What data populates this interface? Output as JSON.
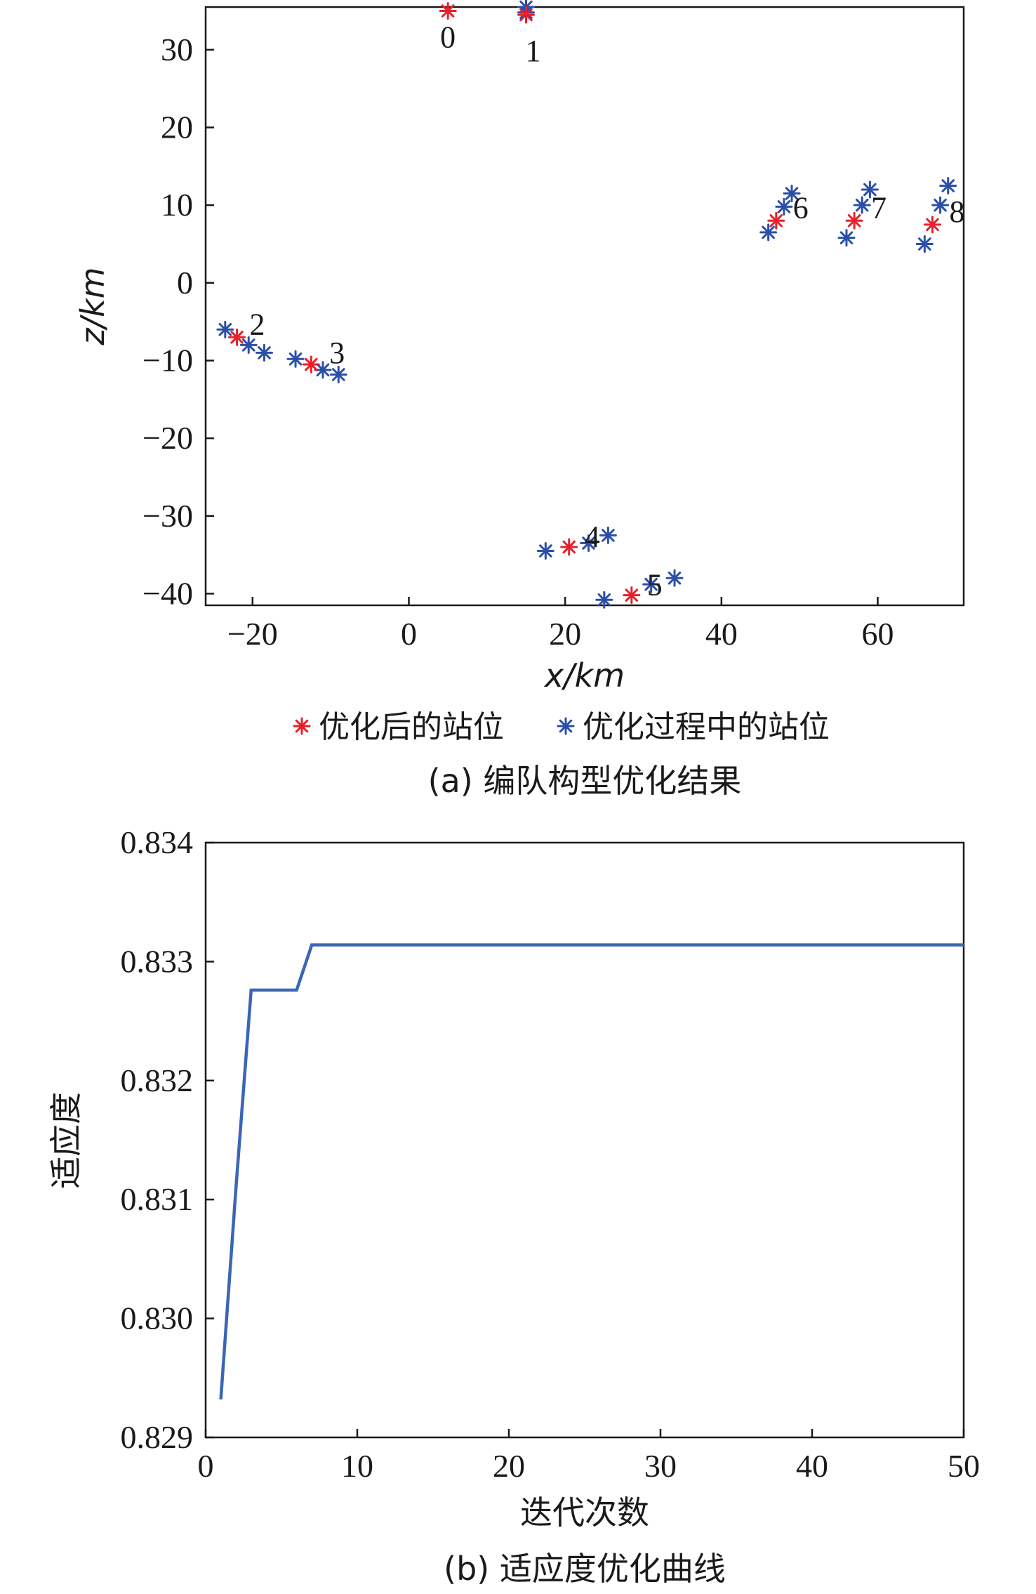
{
  "chart_data": [
    {
      "type": "scatter",
      "caption": "(a) 编队构型优化结果",
      "xlabel": "x/km",
      "ylabel": "z/km",
      "xlim": [
        -26,
        71
      ],
      "ylim": [
        -41.5,
        35.5
      ],
      "xticks": [
        -20,
        0,
        20,
        40,
        60
      ],
      "yticks": [
        -40,
        -30,
        -20,
        -10,
        0,
        10,
        20,
        30
      ],
      "xtick_labels": [
        "−20",
        "0",
        "20",
        "40",
        "60"
      ],
      "ytick_labels": [
        "−40",
        "−30",
        "−20",
        "−10",
        "0",
        "10",
        "20",
        "30"
      ],
      "legend_position": "bottom",
      "colors": {
        "optimized": "#e8202a",
        "process": "#2b4fa8"
      },
      "series": [
        {
          "name": "优化后的站位",
          "color": "#e8202a",
          "points": [
            {
              "x": 5,
              "y": 35
            },
            {
              "x": 15,
              "y": 34.5
            },
            {
              "x": -22,
              "y": -7
            },
            {
              "x": -12.5,
              "y": -10.5
            },
            {
              "x": 20.5,
              "y": -34
            },
            {
              "x": 28.5,
              "y": -40.2
            },
            {
              "x": 47,
              "y": 8
            },
            {
              "x": 57,
              "y": 8
            },
            {
              "x": 67,
              "y": 7.5
            }
          ]
        },
        {
          "name": "优化过程中的站位",
          "color": "#2b4fa8",
          "points": [
            {
              "x": 15,
              "y": 35.5
            },
            {
              "x": 15,
              "y": 34.8
            },
            {
              "x": -23.5,
              "y": -6
            },
            {
              "x": -20.5,
              "y": -8
            },
            {
              "x": -18.5,
              "y": -9
            },
            {
              "x": -14.5,
              "y": -9.8
            },
            {
              "x": -11,
              "y": -11.2
            },
            {
              "x": -9,
              "y": -11.8
            },
            {
              "x": 17.5,
              "y": -34.5
            },
            {
              "x": 23,
              "y": -33.5
            },
            {
              "x": 25.5,
              "y": -32.5
            },
            {
              "x": 25,
              "y": -40.8
            },
            {
              "x": 31,
              "y": -38.8
            },
            {
              "x": 34,
              "y": -38
            },
            {
              "x": 46,
              "y": 6.5
            },
            {
              "x": 48,
              "y": 9.8
            },
            {
              "x": 49,
              "y": 11.5
            },
            {
              "x": 56,
              "y": 5.8
            },
            {
              "x": 58,
              "y": 10
            },
            {
              "x": 59,
              "y": 12
            },
            {
              "x": 66,
              "y": 5
            },
            {
              "x": 68,
              "y": 10
            },
            {
              "x": 69,
              "y": 12.5
            }
          ]
        }
      ],
      "annotations": [
        {
          "text": "0",
          "x": 5,
          "y": 35
        },
        {
          "text": "1",
          "x": 15,
          "y": 34.5
        },
        {
          "text": "2",
          "x": -22,
          "y": -7
        },
        {
          "text": "3",
          "x": -12.5,
          "y": -10.5
        },
        {
          "text": "4",
          "x": 20.5,
          "y": -34
        },
        {
          "text": "5",
          "x": 28.5,
          "y": -40.2
        },
        {
          "text": "6",
          "x": 47,
          "y": 8
        },
        {
          "text": "7",
          "x": 57,
          "y": 8
        },
        {
          "text": "8",
          "x": 67,
          "y": 7.5
        }
      ]
    },
    {
      "type": "line",
      "caption": "(b) 适应度优化曲线",
      "xlabel": "迭代次数",
      "ylabel": "适应度",
      "xlim": [
        0,
        50
      ],
      "ylim": [
        0.829,
        0.834
      ],
      "xticks": [
        0,
        10,
        20,
        30,
        40,
        50
      ],
      "yticks": [
        0.829,
        0.83,
        0.831,
        0.832,
        0.833,
        0.834
      ],
      "xtick_labels": [
        "0",
        "10",
        "20",
        "30",
        "40",
        "50"
      ],
      "ytick_labels": [
        "0.829",
        "0.830",
        "0.831",
        "0.832",
        "0.833",
        "0.834"
      ],
      "series": [
        {
          "color": "#3a66b5",
          "x": [
            1,
            2,
            3,
            4,
            5,
            6,
            7,
            8,
            50
          ],
          "y": [
            0.82932,
            0.8311,
            0.83276,
            0.83276,
            0.83276,
            0.83276,
            0.83314,
            0.83314,
            0.83314
          ]
        }
      ]
    }
  ]
}
